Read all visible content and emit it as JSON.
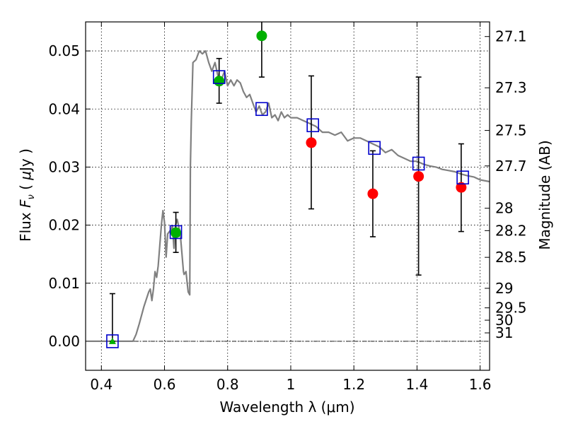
{
  "chart_data": {
    "type": "scatter",
    "xlabel": "Wavelength  λ (μm)",
    "ylabel": "Flux  F_ν  ( μJy )",
    "ylabel_parts": {
      "prefix": "Flux  ",
      "symbol": "F",
      "subscript": "ν",
      "open": "  ( ",
      "mu": "μ",
      "unit": "Jy )"
    },
    "y2label": "Magnitude (AB)",
    "xlim": [
      0.35,
      1.63
    ],
    "ylim": [
      -0.005,
      0.055
    ],
    "grid": true,
    "x_ticks": [
      0.4,
      0.6,
      0.8,
      1.0,
      1.2,
      1.4,
      1.6
    ],
    "x_tick_labels": [
      "0.4",
      "0.6",
      "0.8",
      "1",
      "1.2",
      "1.4",
      "1.6"
    ],
    "y_ticks": [
      0.0,
      0.01,
      0.02,
      0.03,
      0.04,
      0.05
    ],
    "y_tick_labels": [
      "0.00",
      "0.01",
      "0.02",
      "0.03",
      "0.04",
      "0.05"
    ],
    "mag_ticks": [
      27.1,
      27.3,
      27.5,
      27.7,
      28,
      28.2,
      28.5,
      29,
      29.5,
      30,
      31
    ],
    "mag_tick_labels": [
      "27.1",
      "27.3",
      "27.5",
      "27.7",
      "28",
      "28.2",
      "28.5",
      "29",
      "29.5",
      "30",
      "31"
    ],
    "colors": {
      "model": "#808080",
      "observed_detect": "#00b000",
      "observed_limit": "#ff0000",
      "model_band": "#0000cc",
      "errorbar": "#000000"
    },
    "model_spectrum": {
      "x": [
        0.35,
        0.5,
        0.51,
        0.52,
        0.535,
        0.55,
        0.555,
        0.56,
        0.565,
        0.57,
        0.575,
        0.58,
        0.59,
        0.595,
        0.6,
        0.605,
        0.61,
        0.62,
        0.625,
        0.63,
        0.635,
        0.64,
        0.65,
        0.66,
        0.662,
        0.668,
        0.672,
        0.675,
        0.68,
        0.682,
        0.685,
        0.69,
        0.7,
        0.71,
        0.72,
        0.73,
        0.74,
        0.75,
        0.76,
        0.77,
        0.78,
        0.79,
        0.8,
        0.81,
        0.82,
        0.83,
        0.84,
        0.85,
        0.86,
        0.87,
        0.88,
        0.89,
        0.9,
        0.91,
        0.92,
        0.93,
        0.94,
        0.95,
        0.96,
        0.97,
        0.98,
        0.99,
        1.0,
        1.02,
        1.04,
        1.06,
        1.08,
        1.1,
        1.12,
        1.14,
        1.16,
        1.18,
        1.2,
        1.22,
        1.24,
        1.26,
        1.28,
        1.3,
        1.32,
        1.34,
        1.36,
        1.38,
        1.4,
        1.42,
        1.44,
        1.46,
        1.48,
        1.5,
        1.52,
        1.54,
        1.56,
        1.58,
        1.6,
        1.63
      ],
      "y": [
        0.0,
        0.0,
        0.0012,
        0.003,
        0.006,
        0.0085,
        0.009,
        0.007,
        0.009,
        0.012,
        0.011,
        0.013,
        0.02,
        0.0225,
        0.0205,
        0.0145,
        0.0185,
        0.0192,
        0.0198,
        0.016,
        0.02,
        0.021,
        0.0185,
        0.012,
        0.0115,
        0.012,
        0.01,
        0.0085,
        0.008,
        0.03,
        0.038,
        0.048,
        0.0485,
        0.05,
        0.0495,
        0.05,
        0.048,
        0.0465,
        0.048,
        0.0455,
        0.045,
        0.0465,
        0.044,
        0.045,
        0.044,
        0.045,
        0.0445,
        0.043,
        0.042,
        0.0425,
        0.041,
        0.0395,
        0.0405,
        0.039,
        0.0395,
        0.041,
        0.0385,
        0.039,
        0.038,
        0.0395,
        0.0385,
        0.039,
        0.0385,
        0.0385,
        0.038,
        0.0375,
        0.037,
        0.036,
        0.036,
        0.0355,
        0.036,
        0.0345,
        0.035,
        0.035,
        0.0345,
        0.034,
        0.0335,
        0.0325,
        0.033,
        0.032,
        0.0315,
        0.031,
        0.031,
        0.0305,
        0.0302,
        0.03,
        0.0296,
        0.0294,
        0.0292,
        0.0288,
        0.0285,
        0.0283,
        0.0278,
        0.0275
      ]
    },
    "model_bands": [
      {
        "x": 0.435,
        "y": 0.0
      },
      {
        "x": 0.636,
        "y": 0.0188
      },
      {
        "x": 0.773,
        "y": 0.0455
      },
      {
        "x": 0.908,
        "y": 0.04
      },
      {
        "x": 1.07,
        "y": 0.0372
      },
      {
        "x": 1.265,
        "y": 0.0333
      },
      {
        "x": 1.405,
        "y": 0.0306
      },
      {
        "x": 1.545,
        "y": 0.0282
      }
    ],
    "observed": [
      {
        "x": 0.435,
        "y": 0.0,
        "yerr_low": 0.0,
        "yerr_high": 0.0082,
        "color": "green",
        "marker": "triangle"
      },
      {
        "x": 0.636,
        "y": 0.0187,
        "yerr_low": 0.0153,
        "yerr_high": 0.0222,
        "color": "green",
        "marker": "circle"
      },
      {
        "x": 0.773,
        "y": 0.0448,
        "yerr_low": 0.041,
        "yerr_high": 0.0487,
        "color": "green",
        "marker": "circle"
      },
      {
        "x": 0.908,
        "y": 0.0526,
        "yerr_low": 0.0455,
        "yerr_high": 0.056,
        "color": "green",
        "marker": "circle"
      },
      {
        "x": 1.065,
        "y": 0.0342,
        "yerr_low": 0.0228,
        "yerr_high": 0.0457,
        "color": "red",
        "marker": "circle"
      },
      {
        "x": 1.26,
        "y": 0.0254,
        "yerr_low": 0.018,
        "yerr_high": 0.0328,
        "color": "red",
        "marker": "circle"
      },
      {
        "x": 1.405,
        "y": 0.0284,
        "yerr_low": 0.0114,
        "yerr_high": 0.0455,
        "color": "red",
        "marker": "circle"
      },
      {
        "x": 1.54,
        "y": 0.0265,
        "yerr_low": 0.0189,
        "yerr_high": 0.034,
        "color": "red",
        "marker": "circle"
      }
    ]
  }
}
